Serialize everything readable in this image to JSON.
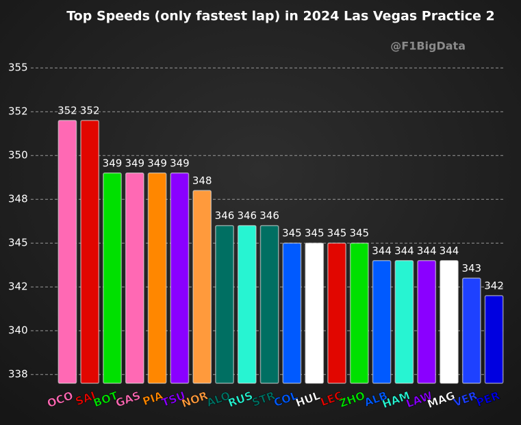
{
  "chart_data": {
    "type": "bar",
    "title": "Top Speeds (only fastest lap) in 2024 Las Vegas Practice 2",
    "watermark": "@F1BigData",
    "categories": [
      "OCO",
      "SAI",
      "BOT",
      "GAS",
      "PIA",
      "TSU",
      "NOR",
      "ALO",
      "RUS",
      "STR",
      "COL",
      "HUL",
      "LEC",
      "ZHO",
      "ALB",
      "HAM",
      "LAW",
      "MAG",
      "VER",
      "PER"
    ],
    "values": [
      352,
      352,
      349,
      349,
      349,
      349,
      348,
      346,
      346,
      346,
      345,
      345,
      345,
      345,
      344,
      344,
      344,
      344,
      343,
      342
    ],
    "colors": [
      "#ff69b4",
      "#e10600",
      "#00e000",
      "#ff69b4",
      "#ff8700",
      "#8a00ff",
      "#ff9a3c",
      "#006f62",
      "#27f4d2",
      "#006f62",
      "#005aff",
      "#ffffff",
      "#e10600",
      "#00e000",
      "#005aff",
      "#27f4d2",
      "#8a00ff",
      "#ffffff",
      "#1e41ff",
      "#0000e0"
    ],
    "ylim": [
      337,
      357
    ],
    "yticks": [
      {
        "value": 337.5,
        "label": "338"
      },
      340,
      {
        "value": 342.5,
        "label": "342"
      },
      345,
      {
        "value": 347.5,
        "label": "348"
      },
      350,
      {
        "value": 352.5,
        "label": "352"
      },
      355
    ],
    "grid": true
  }
}
